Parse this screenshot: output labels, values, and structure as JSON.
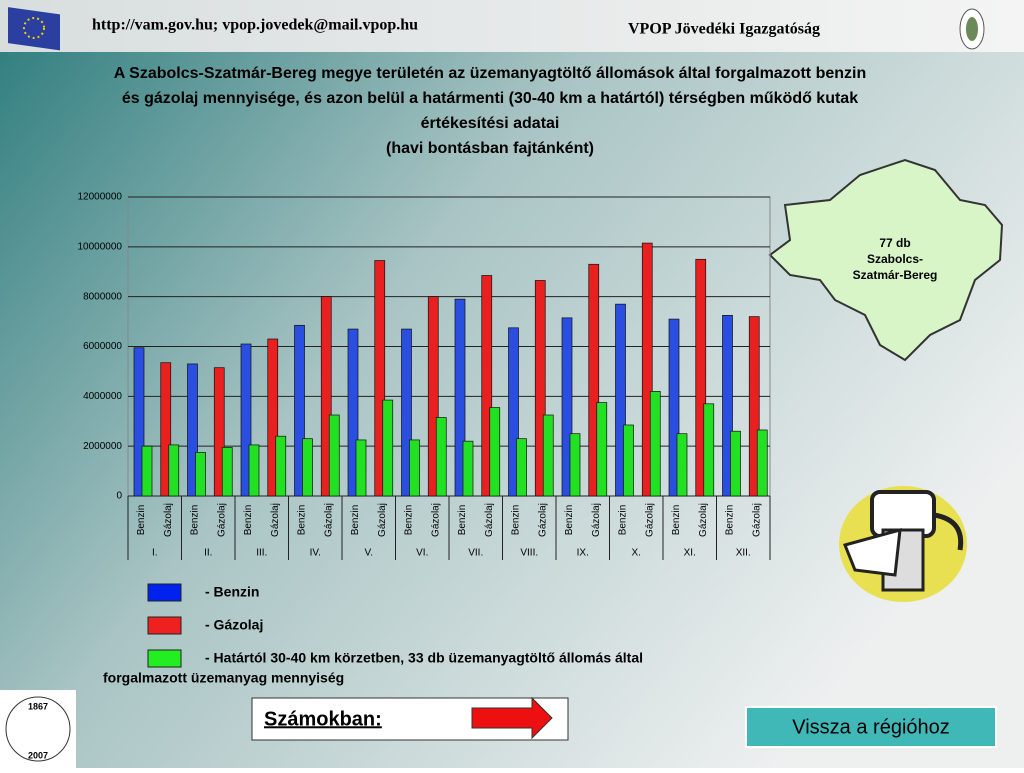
{
  "header": {
    "url": "http://vam.gov.hu; vpop.jovedek@mail.vpop.hu",
    "org": "VPOP Jövedéki Igazgatóság"
  },
  "logo": {
    "years": [
      "1867",
      "2007"
    ]
  },
  "map_label": [
    "77 db",
    "Szabolcs-",
    "Szatmár-Bereg"
  ],
  "numbers_button": "Számokban:",
  "back_button": "Vissza a régióhoz",
  "chart_data": {
    "type": "bar",
    "title_lines": [
      "A Szabolcs-Szatmár-Bereg megye területén az üzemanyagtöltő állomások által forgalmazott benzin",
      "és gázolaj mennyisége, és azon belül a határmenti (30-40 km a határtól) térségben működő kutak",
      "értékesítési adatai",
      "(havi bontásban fajtánként)"
    ],
    "groups": [
      "I.",
      "II.",
      "III.",
      "IV.",
      "V.",
      "VI.",
      "VII.",
      "VIII.",
      "IX.",
      "X.",
      "XI.",
      "XII."
    ],
    "categories": [
      "Benzin",
      "Gázolaj",
      "Benzin",
      "Gázolaj",
      "Benzin",
      "Gázolaj",
      "Benzin",
      "Gázolaj",
      "Benzin",
      "Gázolaj",
      "Benzin",
      "Gázolaj",
      "Benzin",
      "Gázolaj",
      "Benzin",
      "Gázolaj",
      "Benzin",
      "Gázolaj",
      "Benzin",
      "Gázolaj",
      "Benzin",
      "Gázolaj",
      "Benzin",
      "Gázolaj"
    ],
    "series": [
      {
        "colors": [
          "#2a4fe0",
          "#e82020",
          "#2a4fe0",
          "#e82020",
          "#2a4fe0",
          "#e82020",
          "#2a4fe0",
          "#e82020",
          "#2a4fe0",
          "#e82020",
          "#2a4fe0",
          "#e82020",
          "#2a4fe0",
          "#e82020",
          "#2a4fe0",
          "#e82020",
          "#2a4fe0",
          "#e82020",
          "#2a4fe0",
          "#e82020",
          "#2a4fe0",
          "#e82020",
          "#2a4fe0",
          "#e82020"
        ],
        "values": [
          5950000,
          5350000,
          5300000,
          5150000,
          6100000,
          6300000,
          6850000,
          8000000,
          6700000,
          9450000,
          6700000,
          8000000,
          7900000,
          8850000,
          6750000,
          8650000,
          7150000,
          9300000,
          7700000,
          10150000,
          7100000,
          9500000,
          7250000,
          7200000
        ]
      },
      {
        "color": "#22e022",
        "values": [
          2000000,
          2050000,
          1750000,
          1950000,
          2050000,
          2400000,
          2300000,
          3250000,
          2250000,
          3850000,
          2250000,
          3150000,
          2200000,
          3550000,
          2300000,
          3250000,
          2500000,
          3750000,
          2850000,
          4200000,
          2500000,
          3700000,
          2600000,
          2650000
        ]
      }
    ],
    "legend": [
      {
        "label": [
          "- Benzin"
        ],
        "color": "#0022ee"
      },
      {
        "label": [
          "- Gázolaj"
        ],
        "color": "#ee2020"
      },
      {
        "label": [
          "- Határtól 30-40 km körzetben, 33 db üzemanyagtöltő állomás által",
          "forgalmazott üzemanyag mennyiség"
        ],
        "color": "#22ee22"
      }
    ],
    "ylim": [
      0,
      12000000
    ],
    "yticks": [
      0,
      2000000,
      4000000,
      6000000,
      8000000,
      10000000,
      12000000
    ],
    "grid": true
  }
}
